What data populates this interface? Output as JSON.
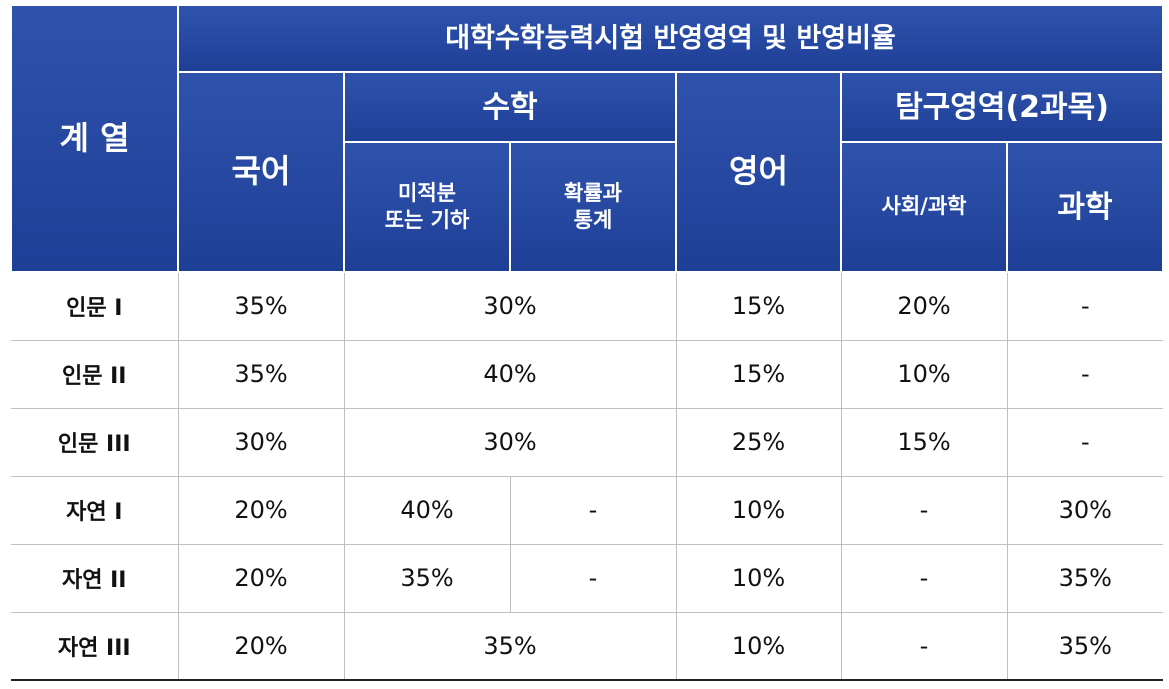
{
  "header": {
    "group": "계 열",
    "top": "대학수학능력시험 반영영역 및 반영비율",
    "korean": "국어",
    "math": "수학",
    "math_sub1_line1": "미적분",
    "math_sub1_line2": "또는 기하",
    "math_sub2_line1": "확률과",
    "math_sub2_line2": "통계",
    "english": "영어",
    "inquiry": "탐구영역(2과목)",
    "inquiry_sub1": "사회/과학",
    "inquiry_sub2": "과학"
  },
  "rows": [
    {
      "label": "인문 I",
      "korean": "35%",
      "math": "30%",
      "english": "15%",
      "social": "20%",
      "science": "-"
    },
    {
      "label": "인문 II",
      "korean": "35%",
      "math": "40%",
      "english": "15%",
      "social": "10%",
      "science": "-"
    },
    {
      "label": "인문 III",
      "korean": "30%",
      "math": "30%",
      "english": "25%",
      "social": "15%",
      "science": "-"
    },
    {
      "label": "자연 I",
      "korean": "20%",
      "calc": "40%",
      "stats": "-",
      "english": "10%",
      "social": "-",
      "science": "30%"
    },
    {
      "label": "자연 II",
      "korean": "20%",
      "calc": "35%",
      "stats": "-",
      "english": "10%",
      "social": "-",
      "science": "35%"
    },
    {
      "label": "자연 III",
      "korean": "20%",
      "math": "35%",
      "english": "10%",
      "social": "-",
      "science": "35%"
    }
  ]
}
